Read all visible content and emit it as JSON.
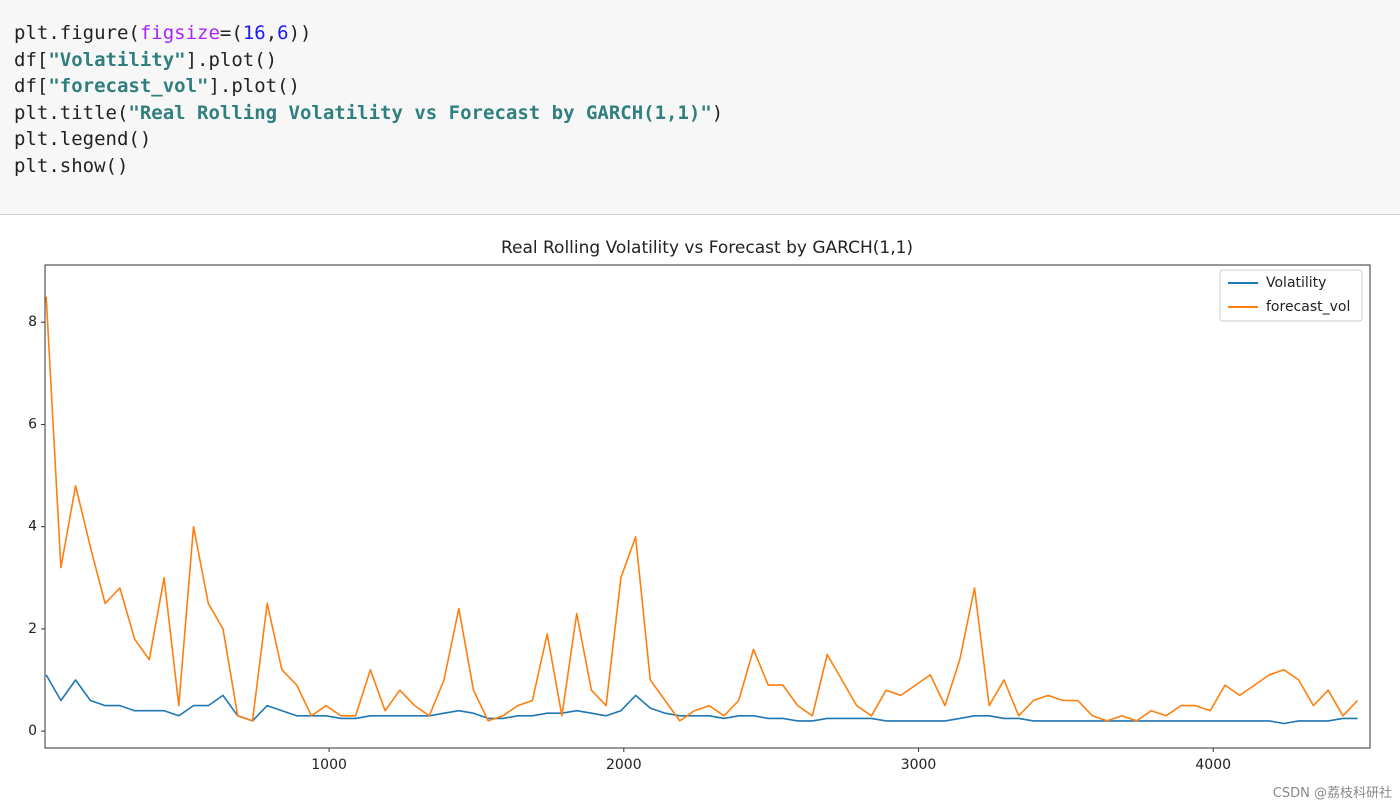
{
  "code_cell": {
    "lines": [
      [
        "plt.figure(",
        "figsize",
        "=(",
        "16",
        ",",
        "6",
        "))"
      ],
      [
        "df[",
        "\"Volatility\"",
        "].plot()"
      ],
      [
        "df[",
        "\"forecast_vol\"",
        "].plot()"
      ],
      [
        "plt.title(",
        "\"Real Rolling Volatility vs Forecast by GARCH(1,1)\"",
        ")"
      ],
      [
        "plt.legend()"
      ],
      [
        "plt.show()"
      ]
    ]
  },
  "chart_data": {
    "type": "line",
    "title": "Real Rolling Volatility vs Forecast by GARCH(1,1)",
    "x": [
      40,
      90,
      140,
      190,
      240,
      290,
      340,
      390,
      440,
      490,
      540,
      590,
      640,
      690,
      740,
      790,
      840,
      890,
      940,
      990,
      1040,
      1090,
      1140,
      1190,
      1240,
      1290,
      1340,
      1390,
      1440,
      1490,
      1540,
      1590,
      1640,
      1690,
      1740,
      1790,
      1840,
      1890,
      1940,
      1990,
      2040,
      2090,
      2140,
      2190,
      2240,
      2290,
      2340,
      2390,
      2440,
      2490,
      2540,
      2590,
      2640,
      2690,
      2740,
      2790,
      2840,
      2890,
      2940,
      2990,
      3040,
      3090,
      3140,
      3190,
      3240,
      3290,
      3340,
      3390,
      3440,
      3490,
      3540,
      3590,
      3640,
      3690,
      3740,
      3790,
      3840,
      3890,
      3940,
      3990,
      4040,
      4090,
      4140,
      4190,
      4240,
      4290,
      4340,
      4390,
      4440,
      4490
    ],
    "series": [
      {
        "name": "Volatility",
        "color": "#1f77b4",
        "values": [
          1.1,
          0.6,
          1.0,
          0.6,
          0.5,
          0.5,
          0.4,
          0.4,
          0.4,
          0.3,
          0.5,
          0.5,
          0.7,
          0.3,
          0.2,
          0.5,
          0.4,
          0.3,
          0.3,
          0.3,
          0.25,
          0.25,
          0.3,
          0.3,
          0.3,
          0.3,
          0.3,
          0.35,
          0.4,
          0.35,
          0.25,
          0.25,
          0.3,
          0.3,
          0.35,
          0.35,
          0.4,
          0.35,
          0.3,
          0.4,
          0.7,
          0.45,
          0.35,
          0.3,
          0.3,
          0.3,
          0.25,
          0.3,
          0.3,
          0.25,
          0.25,
          0.2,
          0.2,
          0.25,
          0.25,
          0.25,
          0.25,
          0.2,
          0.2,
          0.2,
          0.2,
          0.2,
          0.25,
          0.3,
          0.3,
          0.25,
          0.25,
          0.2,
          0.2,
          0.2,
          0.2,
          0.2,
          0.2,
          0.2,
          0.2,
          0.2,
          0.2,
          0.2,
          0.2,
          0.2,
          0.2,
          0.2,
          0.2,
          0.2,
          0.15,
          0.2,
          0.2,
          0.2,
          0.25,
          0.25
        ]
      },
      {
        "name": "forecast_vol",
        "color": "#ff7f0e",
        "values": [
          8.5,
          3.2,
          4.8,
          3.6,
          2.5,
          2.8,
          1.8,
          1.4,
          3.0,
          0.5,
          4.0,
          2.5,
          2.0,
          0.3,
          0.2,
          2.5,
          1.2,
          0.9,
          0.3,
          0.5,
          0.3,
          0.3,
          1.2,
          0.4,
          0.8,
          0.5,
          0.3,
          1.0,
          2.4,
          0.8,
          0.2,
          0.3,
          0.5,
          0.6,
          1.9,
          0.3,
          2.3,
          0.8,
          0.5,
          3.0,
          3.8,
          1.0,
          0.6,
          0.2,
          0.4,
          0.5,
          0.3,
          0.6,
          1.6,
          0.9,
          0.9,
          0.5,
          0.3,
          1.5,
          1.0,
          0.5,
          0.3,
          0.8,
          0.7,
          0.9,
          1.1,
          0.5,
          1.4,
          2.8,
          0.5,
          1.0,
          0.3,
          0.6,
          0.7,
          0.6,
          0.6,
          0.3,
          0.2,
          0.3,
          0.2,
          0.4,
          0.3,
          0.5,
          0.5,
          0.4,
          0.9,
          0.7,
          0.9,
          1.1,
          1.2,
          1.0,
          0.5,
          0.8,
          0.3,
          0.6
        ]
      }
    ],
    "xlim": [
      36,
      4532
    ],
    "ylim": [
      -0.33,
      9.12
    ],
    "xticks": [
      1000,
      2000,
      3000,
      4000
    ],
    "yticks": [
      0,
      2,
      4,
      6,
      8
    ],
    "legend": "upper right"
  },
  "watermark": "CSDN @荔枝科研社"
}
